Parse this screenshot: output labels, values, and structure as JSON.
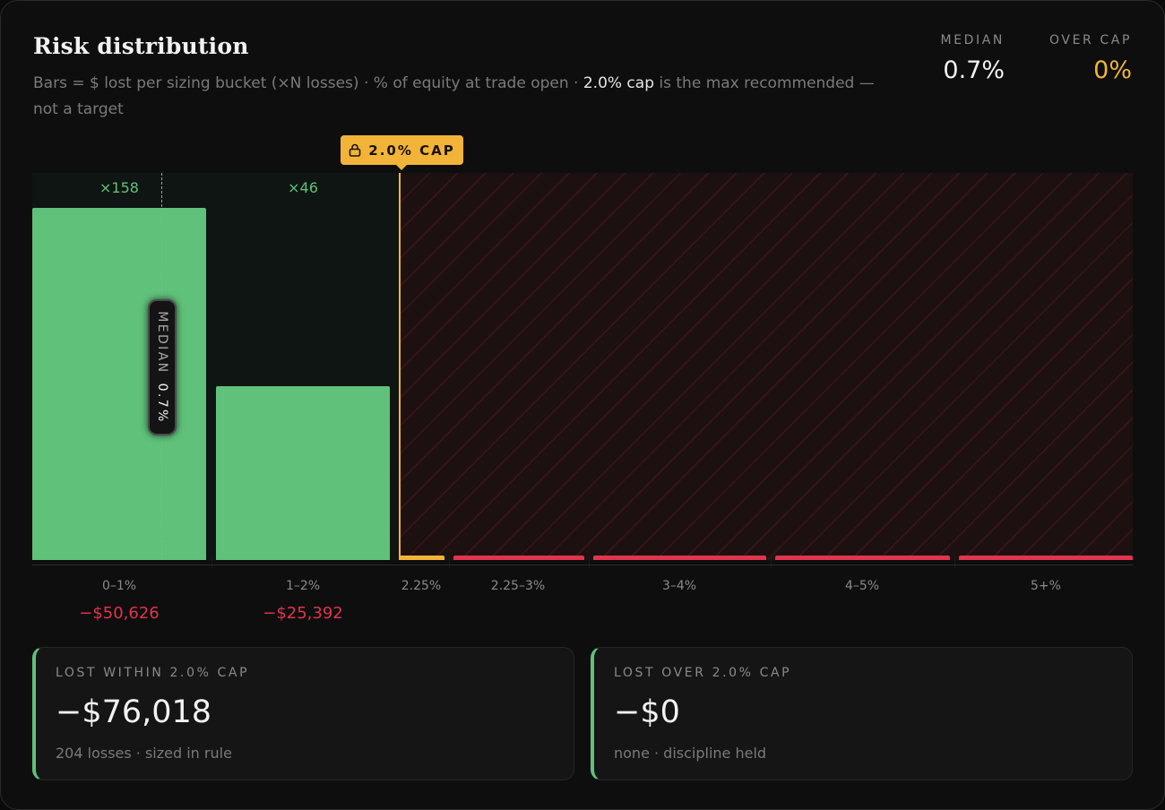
{
  "header": {
    "title": "Risk distribution",
    "subtitle_before": "Bars = $ lost per sizing bucket (×N losses) · % of equity at trade open · ",
    "subtitle_highlight": "2.0% cap",
    "subtitle_after": " is the max recommended — not a target"
  },
  "stats": {
    "median_label": "MEDIAN",
    "median_value": "0.7%",
    "over_cap_label": "OVER CAP",
    "over_cap_value": "0%"
  },
  "cap": {
    "label": "2.0% CAP",
    "value_pct": 2.0,
    "icon": "lock-icon",
    "color": "#f2b438"
  },
  "median_marker": {
    "label": "MEDIAN",
    "value": "0.7%",
    "value_pct": 0.7
  },
  "chart_data": {
    "type": "bar",
    "categories": [
      "0–1%",
      "1–2%",
      "2.25%",
      "2.25–3%",
      "3–4%",
      "4–5%",
      "5+%"
    ],
    "counts": [
      "×158",
      "×46",
      "",
      "",
      "",
      "",
      ""
    ],
    "count_values": [
      158,
      46,
      0,
      0,
      0,
      0,
      0
    ],
    "loss_labels": [
      "−$50,626",
      "−$25,392",
      "",
      "",
      "",
      "",
      ""
    ],
    "values": [
      50626,
      25392,
      0,
      0,
      0,
      0,
      0
    ],
    "ylim": [
      0,
      55000
    ],
    "over_cap_start_category": "2.25%",
    "colors": {
      "within": "#5fc17a",
      "over": "#e0344f",
      "cap": "#f2b438"
    },
    "grid": false,
    "legend": "none"
  },
  "summary": {
    "within": {
      "label": "LOST WITHIN 2.0% CAP",
      "value": "−$76,018",
      "note": "204 losses · sized in rule"
    },
    "over": {
      "label": "LOST OVER 2.0% CAP",
      "value": "−$0",
      "note": "none · discipline held"
    }
  }
}
